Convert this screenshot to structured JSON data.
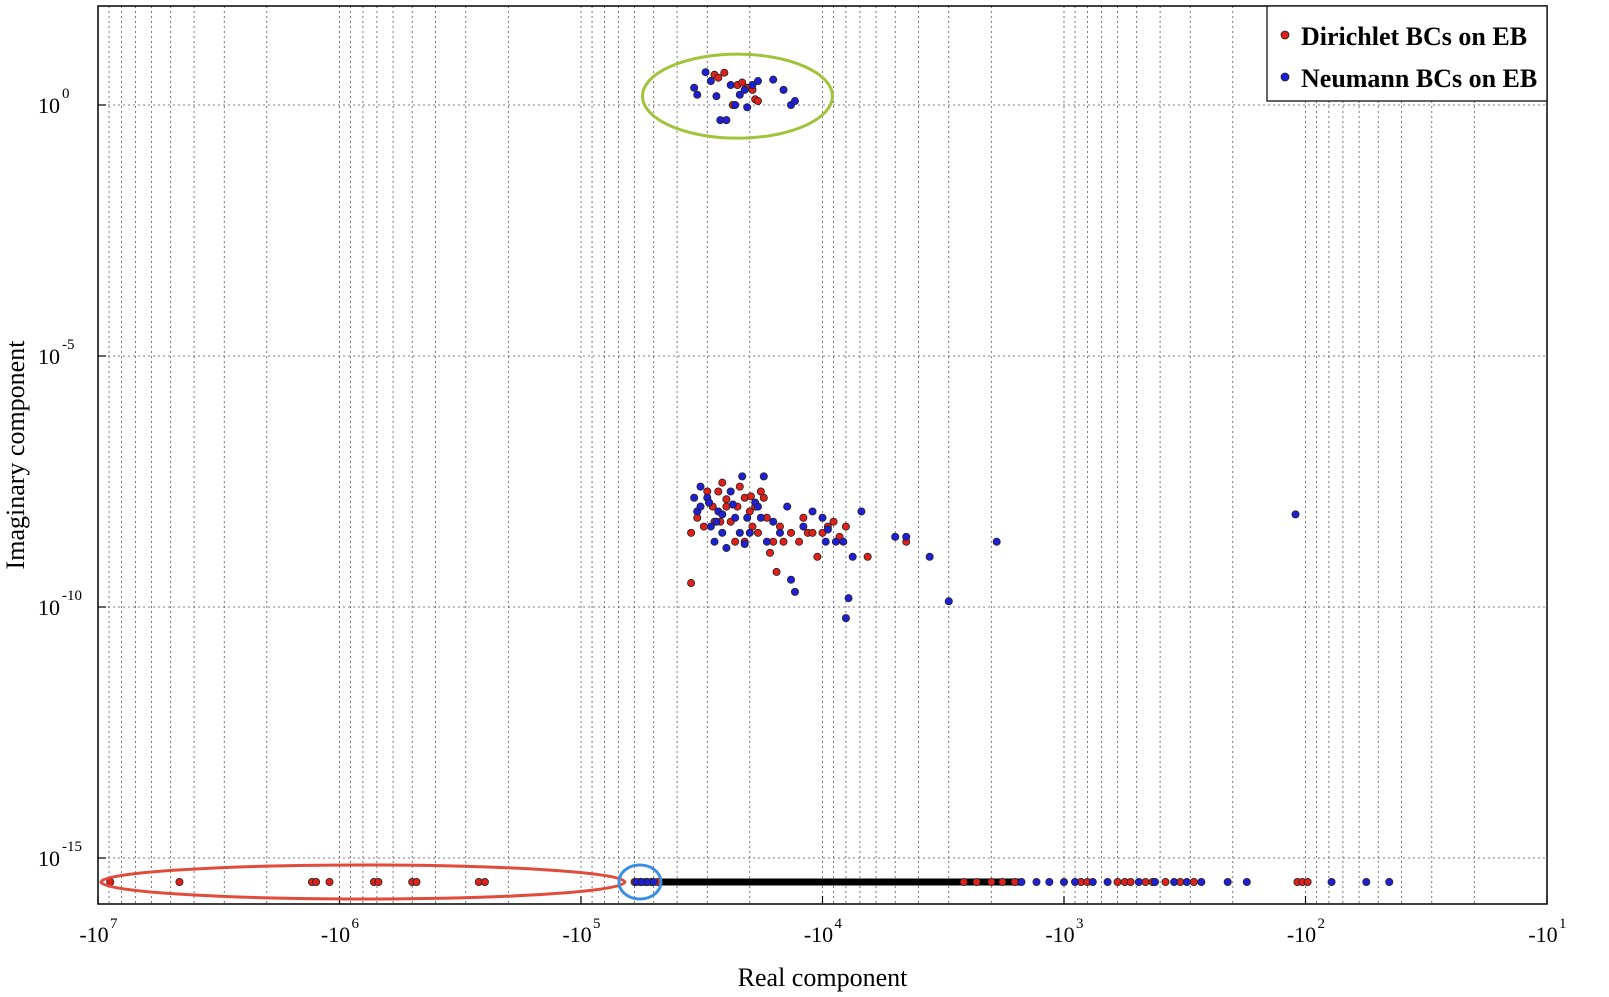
{
  "chart_data": {
    "type": "scatter",
    "xlabel": "Real component",
    "ylabel": "Imaginary component",
    "x_scale": "log (negative real axis)",
    "y_scale": "log",
    "xlim": [
      -10000000,
      -10
    ],
    "ylim": [
      1e-16,
      100.0
    ],
    "grid": true,
    "legend_position": "top-right",
    "x_ticks": [
      {
        "base": "-10",
        "exp": "7",
        "value": -10000000
      },
      {
        "base": "-10",
        "exp": "6",
        "value": -1000000
      },
      {
        "base": "-10",
        "exp": "5",
        "value": -100000
      },
      {
        "base": "-10",
        "exp": "4",
        "value": -10000
      },
      {
        "base": "-10",
        "exp": "3",
        "value": -1000
      },
      {
        "base": "-10",
        "exp": "2",
        "value": -100
      },
      {
        "base": "-10",
        "exp": "1",
        "value": -10
      }
    ],
    "y_ticks": [
      {
        "base": "10",
        "exp": "0",
        "value": 1
      },
      {
        "base": "10",
        "exp": "-5",
        "value": 1e-05
      },
      {
        "base": "10",
        "exp": "-10",
        "value": 1e-10
      },
      {
        "base": "10",
        "exp": "-15",
        "value": 1e-15
      }
    ],
    "series": [
      {
        "name": "Dirichlet BCs on EB",
        "color": "#e0201b",
        "points": [
          [
            -8900000,
            1e-16
          ],
          [
            -4600000,
            1e-16
          ],
          [
            -1300000,
            1e-16
          ],
          [
            -1250000,
            1e-16
          ],
          [
            -1100000,
            1e-16
          ],
          [
            -720000,
            1e-16
          ],
          [
            -690000,
            1e-16
          ],
          [
            -500000,
            1e-16
          ],
          [
            -480000,
            1e-16
          ],
          [
            -265000,
            1e-16
          ],
          [
            -250000,
            1e-16
          ],
          [
            -60000,
            1e-16
          ],
          [
            -57000,
            1e-16
          ],
          [
            -54000,
            1e-16
          ],
          [
            -51000,
            1e-16
          ],
          [
            -48000,
            1e-16
          ],
          [
            -2600,
            1e-16
          ],
          [
            -2300,
            1e-16
          ],
          [
            -2000,
            1e-16
          ],
          [
            -1800,
            1e-16
          ],
          [
            -1600,
            1e-16
          ],
          [
            -850,
            1e-16
          ],
          [
            -800,
            1e-16
          ],
          [
            -600,
            1e-16
          ],
          [
            -560,
            1e-16
          ],
          [
            -530,
            1e-16
          ],
          [
            -460,
            1e-16
          ],
          [
            -430,
            1e-16
          ],
          [
            -380,
            1e-16
          ],
          [
            -330,
            1e-16
          ],
          [
            -290,
            1e-16
          ],
          [
            -108,
            1e-16
          ],
          [
            -103,
            1e-16
          ],
          [
            -98,
            1e-16
          ],
          [
            -28000,
            4
          ],
          [
            -27000,
            3.5
          ],
          [
            -25500,
            4.4
          ],
          [
            -22500,
            2.5
          ],
          [
            -21500,
            2.8
          ],
          [
            -20500,
            2.2
          ],
          [
            -19500,
            2.0
          ],
          [
            -19000,
            1.3
          ],
          [
            -18500,
            1.2
          ],
          [
            -23500,
            1.0
          ],
          [
            -35000,
            3e-09
          ],
          [
            -33000,
            8e-09
          ],
          [
            -30000,
            2e-08
          ],
          [
            -28000,
            5e-09
          ],
          [
            -27000,
            2e-08
          ],
          [
            -26000,
            3e-08
          ],
          [
            -25000,
            1e-08
          ],
          [
            -24000,
            5e-09
          ],
          [
            -23000,
            2e-09
          ],
          [
            -22000,
            2.5e-08
          ],
          [
            -21000,
            1.5e-08
          ],
          [
            -20000,
            8e-09
          ],
          [
            -19500,
            4e-09
          ],
          [
            -19000,
            1e-08
          ],
          [
            -18500,
            3e-09
          ],
          [
            -18000,
            2e-08
          ],
          [
            -17500,
            1.5e-08
          ],
          [
            -17000,
            6e-09
          ],
          [
            -16500,
            1.2e-09
          ],
          [
            -16000,
            2e-09
          ],
          [
            -15500,
            5e-10
          ],
          [
            -15000,
            4e-09
          ],
          [
            -14500,
            2e-09
          ],
          [
            -13500,
            3e-09
          ],
          [
            -12500,
            2e-09
          ],
          [
            -12000,
            6e-09
          ],
          [
            -11500,
            3e-09
          ],
          [
            -11000,
            3e-09
          ],
          [
            -10500,
            1e-09
          ],
          [
            -10000,
            3e-09
          ],
          [
            -9500,
            4e-09
          ],
          [
            -9000,
            5e-09
          ],
          [
            -8500,
            2.5e-09
          ],
          [
            -8000,
            4e-09
          ],
          [
            -6500,
            1e-09
          ],
          [
            -4500,
            2e-09
          ],
          [
            -35000,
            3e-10
          ],
          [
            -33000,
            6e-09
          ],
          [
            -31000,
            4e-09
          ],
          [
            -29500,
            1.2e-08
          ],
          [
            -28500,
            1e-08
          ],
          [
            -26500,
            5e-09
          ],
          [
            -25000,
            1.4e-08
          ],
          [
            -22500,
            1e-08
          ],
          [
            -21000,
            2e-09
          ],
          [
            -19800,
            1.6e-08
          ]
        ]
      },
      {
        "name": "Neumann BCs on EB",
        "color": "#1f1fd6",
        "points": [
          [
            -59000,
            1e-16
          ],
          [
            -56000,
            1e-16
          ],
          [
            -53000,
            1e-16
          ],
          [
            -50000,
            1e-16
          ],
          [
            -1500,
            1e-16
          ],
          [
            -1300,
            1e-16
          ],
          [
            -1150,
            1e-16
          ],
          [
            -1000,
            1e-16
          ],
          [
            -900,
            1e-16
          ],
          [
            -760,
            1e-16
          ],
          [
            -660,
            1e-16
          ],
          [
            -490,
            1e-16
          ],
          [
            -420,
            1e-16
          ],
          [
            -350,
            1e-16
          ],
          [
            -310,
            1e-16
          ],
          [
            -270,
            1e-16
          ],
          [
            -210,
            1e-16
          ],
          [
            -175,
            1e-16
          ],
          [
            -78,
            1e-16
          ],
          [
            -56,
            1e-16
          ],
          [
            -45,
            1e-16
          ],
          [
            -34000,
            2.2
          ],
          [
            -33000,
            1.6
          ],
          [
            -30500,
            4.5
          ],
          [
            -29000,
            3.0
          ],
          [
            -27500,
            1.5
          ],
          [
            -26500,
            0.5
          ],
          [
            -25000,
            0.5
          ],
          [
            -24000,
            2.5
          ],
          [
            -23000,
            1.0
          ],
          [
            -22000,
            1.6
          ],
          [
            -21000,
            2.0
          ],
          [
            -20500,
            0.9
          ],
          [
            -19500,
            2.5
          ],
          [
            -18500,
            3.0
          ],
          [
            -16000,
            3.2
          ],
          [
            -14500,
            2.0
          ],
          [
            -13500,
            1.0
          ],
          [
            -13000,
            1.2
          ],
          [
            -34000,
            1.5e-08
          ],
          [
            -33000,
            8e-09
          ],
          [
            -32000,
            2.5e-08
          ],
          [
            -30000,
            1.5e-08
          ],
          [
            -29000,
            4e-09
          ],
          [
            -28000,
            2e-09
          ],
          [
            -27000,
            8e-09
          ],
          [
            -26000,
            3e-09
          ],
          [
            -25000,
            1.5e-09
          ],
          [
            -24000,
            2e-08
          ],
          [
            -23000,
            6e-09
          ],
          [
            -22000,
            3e-09
          ],
          [
            -21500,
            4e-08
          ],
          [
            -21000,
            1.8e-09
          ],
          [
            -20000,
            3e-09
          ],
          [
            -19000,
            1.2e-08
          ],
          [
            -18500,
            1e-08
          ],
          [
            -18000,
            6e-09
          ],
          [
            -17500,
            4e-08
          ],
          [
            -17000,
            2e-09
          ],
          [
            -16000,
            5e-09
          ],
          [
            -15000,
            3e-09
          ],
          [
            -14000,
            1e-08
          ],
          [
            -13500,
            3.5e-10
          ],
          [
            -13000,
            2e-10
          ],
          [
            -12000,
            4e-09
          ],
          [
            -11000,
            8e-09
          ],
          [
            -10000,
            6e-09
          ],
          [
            -9700,
            2e-09
          ],
          [
            -9500,
            3.5e-09
          ],
          [
            -8800,
            2e-09
          ],
          [
            -8200,
            2e-09
          ],
          [
            -8000,
            6e-11
          ],
          [
            -7800,
            1.5e-10
          ],
          [
            -7500,
            1e-09
          ],
          [
            -6900,
            8e-09
          ],
          [
            -5000,
            2.5e-09
          ],
          [
            -4500,
            2.5e-09
          ],
          [
            -3600,
            1e-09
          ],
          [
            -3000,
            1.3e-10
          ],
          [
            -1900,
            2e-09
          ],
          [
            -110,
            7e-09
          ],
          [
            -32000,
            1e-08
          ],
          [
            -29500,
            1.2e-08
          ],
          [
            -27500,
            5e-09
          ],
          [
            -26000,
            7e-09
          ],
          [
            -23500,
            1.1e-08
          ],
          [
            -20500,
            6e-09
          ]
        ]
      }
    ]
  },
  "annotations": [
    {
      "shape": "ellipse",
      "color": "#9fc43a"
    },
    {
      "shape": "ellipse",
      "color": "#e24a3a"
    },
    {
      "shape": "ellipse",
      "color": "#3a8fe0"
    }
  ]
}
